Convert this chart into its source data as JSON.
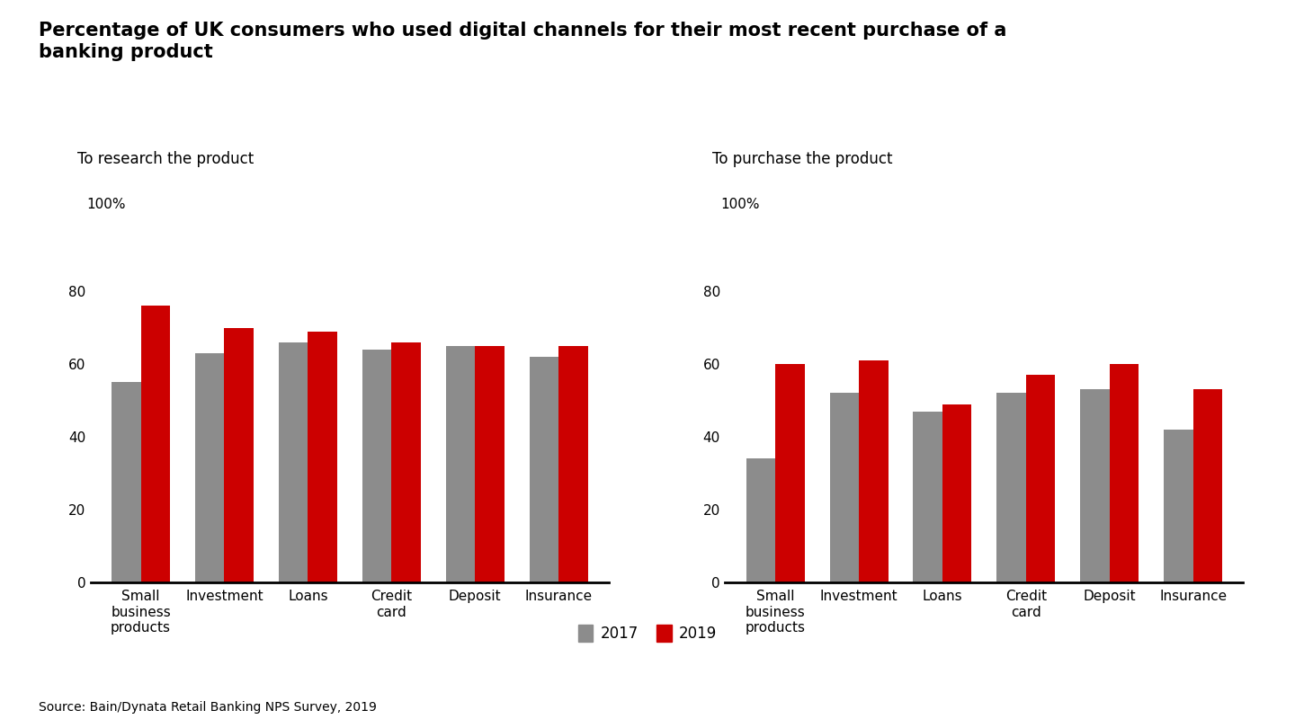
{
  "title": "Percentage of UK consumers who used digital channels for their most recent purchase of a\nbanking product",
  "subtitle_left": "To research the product",
  "subtitle_right": "To purchase the product",
  "categories": [
    "Small\nbusiness\nproducts",
    "Investment",
    "Loans",
    "Credit\ncard",
    "Deposit",
    "Insurance"
  ],
  "research_2017": [
    55,
    63,
    66,
    64,
    65,
    62
  ],
  "research_2019": [
    76,
    70,
    69,
    66,
    65,
    65
  ],
  "purchase_2017": [
    34,
    52,
    47,
    52,
    53,
    42
  ],
  "purchase_2019": [
    60,
    61,
    49,
    57,
    60,
    53
  ],
  "color_2017": "#8c8c8c",
  "color_2019": "#cc0000",
  "ylim": [
    0,
    100
  ],
  "yticks": [
    0,
    20,
    40,
    60,
    80,
    100
  ],
  "source": "Source: Bain/Dynata Retail Banking NPS Survey, 2019",
  "legend_2017": "2017",
  "legend_2019": "2019",
  "bar_width": 0.35,
  "title_fontsize": 15,
  "subtitle_fontsize": 12,
  "tick_fontsize": 11,
  "source_fontsize": 10,
  "legend_fontsize": 12
}
